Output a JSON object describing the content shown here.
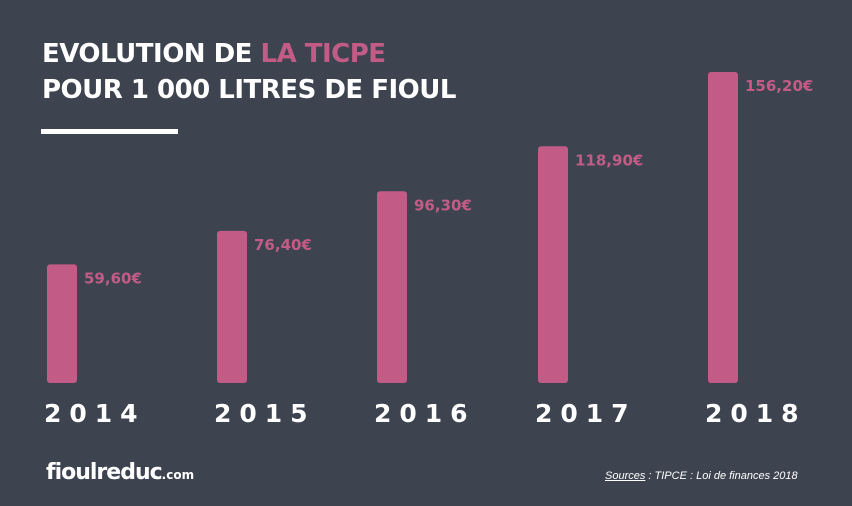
{
  "title": {
    "line1_a": "EVOLUTION DE ",
    "line1_b": "LA TICPE",
    "line2": "POUR 1 000 LITRES DE FIOUL"
  },
  "chart_data": {
    "type": "bar",
    "title": "EVOLUTION DE LA TICPE POUR 1 000 LITRES DE FIOUL",
    "categories": [
      "2014",
      "2015",
      "2016",
      "2017",
      "2018"
    ],
    "values": [
      59.6,
      76.4,
      96.3,
      118.9,
      156.2
    ],
    "data_labels": [
      "59,60€",
      "76,40€",
      "96,30€",
      "118,90€",
      "156,20€"
    ],
    "ylim": [
      0,
      156.2
    ],
    "grid": false,
    "xlabel": "",
    "ylabel": ""
  },
  "colors": {
    "background": "#3d4450",
    "bar": "#c25c86",
    "text": "#ffffff"
  },
  "footer": {
    "logo": "fioulreduc",
    "logo_tld": ".com",
    "source_label": "Sources",
    "source_text": " : TIPCE : Loi de finances 2018"
  }
}
